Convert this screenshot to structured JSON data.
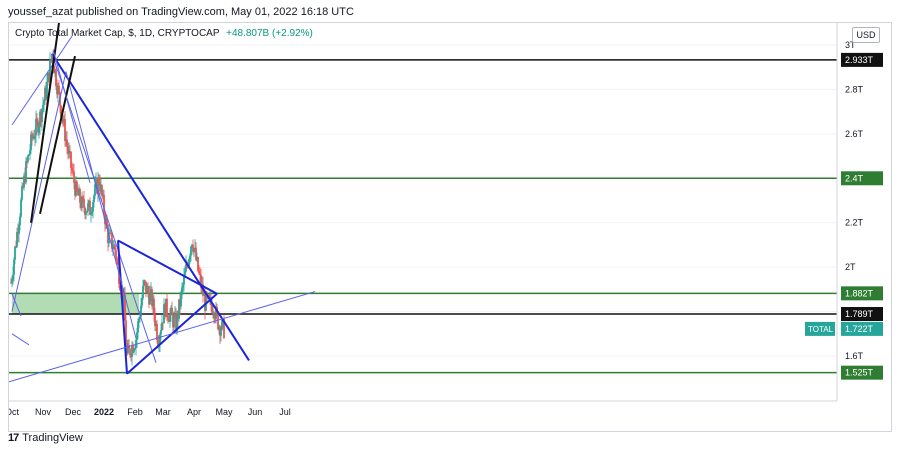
{
  "publisher": "youssef_azat published on TradingView.com, May 01, 2022 16:18 UTC",
  "legend": {
    "symbol": "Crypto Total Market Cap, $, 1D, CRYPTOCAP",
    "change": "+48.807B (+2.92%)"
  },
  "currency": "USD",
  "footer_brand": "TradingView",
  "footer_icon": "tradingview-logo-icon",
  "colors": {
    "up": "#26a69a",
    "down": "#ef5350",
    "trend": "#1a24d8",
    "trend_light": "#5b63ea",
    "support": "#2e7d32",
    "zone_fill": "#a5d6a7",
    "black_line": "#111111",
    "total_label": "#26a69a"
  },
  "chart_data": {
    "type": "candlestick",
    "symbol": "TOTAL",
    "x_ticks": [
      "Oct",
      "Nov",
      "Dec",
      "2022",
      "Feb",
      "Mar",
      "Apr",
      "May",
      "Jun",
      "Jul"
    ],
    "y_ticks": [
      "3T",
      "2.8T",
      "2.6T",
      "2.4T",
      "2.2T",
      "2T",
      "1.8T",
      "1.6T"
    ],
    "y_tick_values": [
      3.0,
      2.8,
      2.6,
      2.4,
      2.2,
      2.0,
      1.8,
      1.6
    ],
    "price_labels": [
      {
        "text": "2.933T",
        "value": 2.933,
        "style": "dark"
      },
      {
        "text": "2.4T",
        "value": 2.4,
        "style": "green"
      },
      {
        "text": "1.882T",
        "value": 1.882,
        "style": "green"
      },
      {
        "text": "1.789T",
        "value": 1.789,
        "style": "dark"
      },
      {
        "text": "1.722T",
        "value": 1.722,
        "style": "teal"
      },
      {
        "text": "1.525T",
        "value": 1.525,
        "style": "green"
      }
    ],
    "current_label": "TOTAL",
    "current_value": 1.722,
    "horizontal_levels": [
      {
        "value": 2.933,
        "color": "black"
      },
      {
        "value": 2.4,
        "color": "green"
      },
      {
        "value": 1.882,
        "color": "green"
      },
      {
        "value": 1.789,
        "color": "black"
      },
      {
        "value": 1.525,
        "color": "green"
      }
    ],
    "zone": {
      "from": 1.789,
      "to": 1.882,
      "start": "2021-10-01",
      "end": "2022-02-05"
    },
    "closes": [
      [
        "2021-09-30",
        1.93
      ],
      [
        "2021-10-07",
        2.19
      ],
      [
        "2021-10-14",
        2.42
      ],
      [
        "2021-10-21",
        2.58
      ],
      [
        "2021-10-28",
        2.66
      ],
      [
        "2021-11-04",
        2.79
      ],
      [
        "2021-11-10",
        2.96
      ],
      [
        "2021-11-18",
        2.74
      ],
      [
        "2021-11-26",
        2.52
      ],
      [
        "2021-12-04",
        2.34
      ],
      [
        "2021-12-10",
        2.28
      ],
      [
        "2021-12-18",
        2.26
      ],
      [
        "2021-12-27",
        2.4
      ],
      [
        "2022-01-05",
        2.14
      ],
      [
        "2022-01-12",
        2.08
      ],
      [
        "2022-01-21",
        1.83
      ],
      [
        "2022-01-24",
        1.6
      ],
      [
        "2022-02-02",
        1.68
      ],
      [
        "2022-02-10",
        1.92
      ],
      [
        "2022-02-18",
        1.85
      ],
      [
        "2022-02-24",
        1.68
      ],
      [
        "2022-03-03",
        1.82
      ],
      [
        "2022-03-14",
        1.74
      ],
      [
        "2022-03-22",
        1.94
      ],
      [
        "2022-03-30",
        2.13
      ],
      [
        "2022-04-06",
        1.96
      ],
      [
        "2022-04-12",
        1.84
      ],
      [
        "2022-04-20",
        1.83
      ],
      [
        "2022-04-26",
        1.74
      ],
      [
        "2022-05-01",
        1.72
      ]
    ],
    "trendlines": [
      {
        "from": [
          "2021-11-10",
          2.96
        ],
        "to": [
          "2022-05-26",
          1.58
        ],
        "color": "trend",
        "width": 2
      },
      {
        "from": [
          "2021-11-10",
          2.96
        ],
        "to": [
          "2022-02-22",
          1.57
        ],
        "color": "trend_light",
        "width": 1
      },
      {
        "from": [
          "2022-01-15",
          2.12
        ],
        "to": [
          "2022-01-24",
          1.52
        ],
        "color": "trend",
        "width": 2
      },
      {
        "from": [
          "2022-01-15",
          2.12
        ],
        "to": [
          "2022-04-24",
          1.88
        ],
        "color": "trend",
        "width": 2
      },
      {
        "from": [
          "2022-01-24",
          1.52
        ],
        "to": [
          "2022-04-24",
          1.88
        ],
        "color": "trend",
        "width": 2
      },
      {
        "from": [
          "2021-09-25",
          1.48
        ],
        "to": [
          "2022-07-31",
          1.89
        ],
        "color": "trend_light",
        "width": 1
      },
      {
        "from": [
          "2021-10-01",
          1.7
        ],
        "to": [
          "2021-10-18",
          1.65
        ],
        "color": "trend_light",
        "width": 1
      },
      {
        "from": [
          "2021-10-01",
          1.88
        ],
        "to": [
          "2021-10-10",
          1.78
        ],
        "color": "trend_light",
        "width": 1
      },
      {
        "from": [
          "2021-10-01",
          1.8
        ],
        "to": [
          "2021-11-24",
          2.88
        ],
        "color": "trend_light",
        "width": 1
      },
      {
        "from": [
          "2021-11-24",
          2.88
        ],
        "to": [
          "2022-02-02",
          1.68
        ],
        "color": "trend_light",
        "width": 1
      },
      {
        "from": [
          "2021-10-01",
          2.64
        ],
        "to": [
          "2021-11-30",
          3.04
        ],
        "color": "trend_light",
        "width": 1
      },
      {
        "from": [
          "2021-10-20",
          2.2
        ],
        "to": [
          "2021-11-17",
          3.1
        ],
        "color": "black_line",
        "width": 2
      },
      {
        "from": [
          "2021-10-29",
          2.24
        ],
        "to": [
          "2021-12-03",
          2.95
        ],
        "color": "black_line",
        "width": 2
      },
      {
        "from": [
          "2021-11-11",
          2.98
        ],
        "to": [
          "2021-12-18",
          2.38
        ],
        "color": "trend_light",
        "width": 1
      }
    ]
  }
}
